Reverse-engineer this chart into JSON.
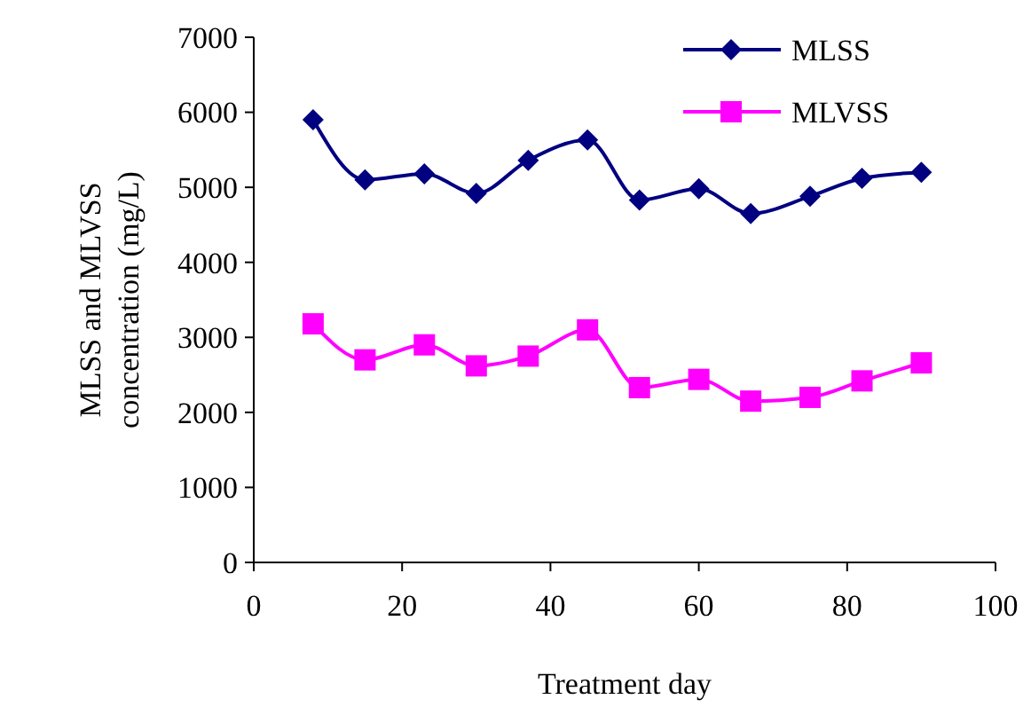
{
  "chart_data": {
    "type": "line",
    "xlabel": "Treatment day",
    "ylabel": "MLSS and MLVSS concentration  (mg/L)",
    "x": [
      8,
      15,
      23,
      30,
      37,
      45,
      52,
      60,
      67,
      75,
      82,
      90
    ],
    "series": [
      {
        "name": "MLSS",
        "color": "#000080",
        "marker": "diamond",
        "values": [
          5900,
          5100,
          5180,
          4920,
          5360,
          5630,
          4830,
          4980,
          4650,
          4880,
          5120,
          5200
        ]
      },
      {
        "name": "MLVSS",
        "color": "#ff00ff",
        "marker": "square",
        "values": [
          3180,
          2700,
          2900,
          2620,
          2750,
          3100,
          2330,
          2440,
          2150,
          2200,
          2420,
          2660
        ]
      }
    ],
    "xlim": [
      0,
      100
    ],
    "xticks": [
      0,
      20,
      40,
      60,
      80,
      100
    ],
    "ylim": [
      0,
      7000
    ],
    "yticks": [
      0,
      1000,
      2000,
      3000,
      4000,
      5000,
      6000,
      7000
    ],
    "legend": "top right",
    "grid": false
  }
}
